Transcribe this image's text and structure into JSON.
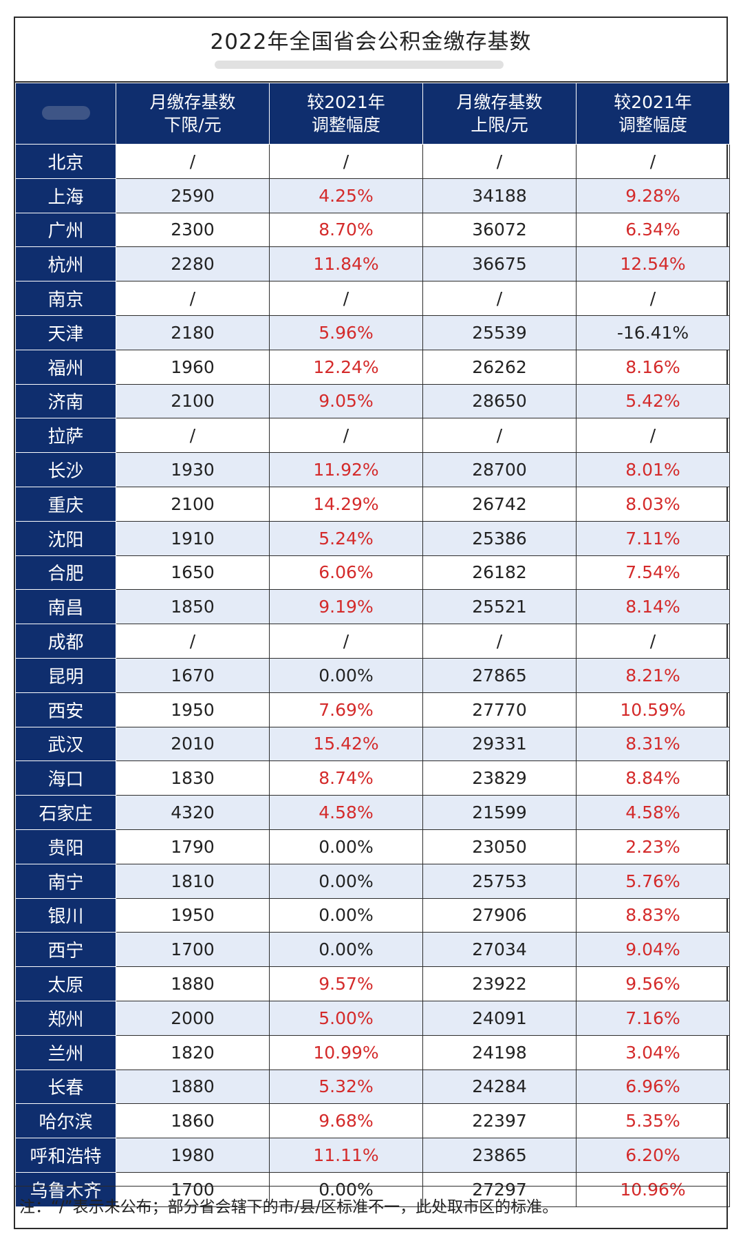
{
  "title": "2022年全国省会公积金缴存基数",
  "header": {
    "lower_limit": "月缴存基数\n下限/元",
    "lower_change": "较2021年\n调整幅度",
    "upper_limit": "月缴存基数\n上限/元",
    "upper_change": "较2021年\n调整幅度"
  },
  "colors": {
    "header_bg": "#0f2e6e",
    "row_alt_bg": "#e4ebf7",
    "increase_red": "#d42a2a"
  },
  "rows": [
    {
      "city": "北京",
      "lower": "/",
      "lower_change": "/",
      "upper": "/",
      "upper_change": "/"
    },
    {
      "city": "上海",
      "lower": "2590",
      "lower_change": "4.25%",
      "upper": "34188",
      "upper_change": "9.28%"
    },
    {
      "city": "广州",
      "lower": "2300",
      "lower_change": "8.70%",
      "upper": "36072",
      "upper_change": "6.34%"
    },
    {
      "city": "杭州",
      "lower": "2280",
      "lower_change": "11.84%",
      "upper": "36675",
      "upper_change": "12.54%"
    },
    {
      "city": "南京",
      "lower": "/",
      "lower_change": "/",
      "upper": "/",
      "upper_change": "/"
    },
    {
      "city": "天津",
      "lower": "2180",
      "lower_change": "5.96%",
      "upper": "25539",
      "upper_change": "-16.41%"
    },
    {
      "city": "福州",
      "lower": "1960",
      "lower_change": "12.24%",
      "upper": "26262",
      "upper_change": "8.16%"
    },
    {
      "city": "济南",
      "lower": "2100",
      "lower_change": "9.05%",
      "upper": "28650",
      "upper_change": "5.42%"
    },
    {
      "city": "拉萨",
      "lower": "/",
      "lower_change": "/",
      "upper": "/",
      "upper_change": "/"
    },
    {
      "city": "长沙",
      "lower": "1930",
      "lower_change": "11.92%",
      "upper": "28700",
      "upper_change": "8.01%"
    },
    {
      "city": "重庆",
      "lower": "2100",
      "lower_change": "14.29%",
      "upper": "26742",
      "upper_change": "8.03%"
    },
    {
      "city": "沈阳",
      "lower": "1910",
      "lower_change": "5.24%",
      "upper": "25386",
      "upper_change": "7.11%"
    },
    {
      "city": "合肥",
      "lower": "1650",
      "lower_change": "6.06%",
      "upper": "26182",
      "upper_change": "7.54%"
    },
    {
      "city": "南昌",
      "lower": "1850",
      "lower_change": "9.19%",
      "upper": "25521",
      "upper_change": "8.14%"
    },
    {
      "city": "成都",
      "lower": "/",
      "lower_change": "/",
      "upper": "/",
      "upper_change": "/"
    },
    {
      "city": "昆明",
      "lower": "1670",
      "lower_change": "0.00%",
      "upper": "27865",
      "upper_change": "8.21%"
    },
    {
      "city": "西安",
      "lower": "1950",
      "lower_change": "7.69%",
      "upper": "27770",
      "upper_change": "10.59%"
    },
    {
      "city": "武汉",
      "lower": "2010",
      "lower_change": "15.42%",
      "upper": "29331",
      "upper_change": "8.31%"
    },
    {
      "city": "海口",
      "lower": "1830",
      "lower_change": "8.74%",
      "upper": "23829",
      "upper_change": "8.84%"
    },
    {
      "city": "石家庄",
      "lower": "4320",
      "lower_change": "4.58%",
      "upper": "21599",
      "upper_change": "4.58%"
    },
    {
      "city": "贵阳",
      "lower": "1790",
      "lower_change": "0.00%",
      "upper": "23050",
      "upper_change": "2.23%"
    },
    {
      "city": "南宁",
      "lower": "1810",
      "lower_change": "0.00%",
      "upper": "25753",
      "upper_change": "5.76%"
    },
    {
      "city": "银川",
      "lower": "1950",
      "lower_change": "0.00%",
      "upper": "27906",
      "upper_change": "8.83%"
    },
    {
      "city": "西宁",
      "lower": "1700",
      "lower_change": "0.00%",
      "upper": "27034",
      "upper_change": "9.04%"
    },
    {
      "city": "太原",
      "lower": "1880",
      "lower_change": "9.57%",
      "upper": "23922",
      "upper_change": "9.56%"
    },
    {
      "city": "郑州",
      "lower": "2000",
      "lower_change": "5.00%",
      "upper": "24091",
      "upper_change": "7.16%"
    },
    {
      "city": "兰州",
      "lower": "1820",
      "lower_change": "10.99%",
      "upper": "24198",
      "upper_change": "3.04%"
    },
    {
      "city": "长春",
      "lower": "1880",
      "lower_change": "5.32%",
      "upper": "24284",
      "upper_change": "6.96%"
    },
    {
      "city": "哈尔滨",
      "lower": "1860",
      "lower_change": "9.68%",
      "upper": "22397",
      "upper_change": "5.35%"
    },
    {
      "city": "呼和浩特",
      "lower": "1980",
      "lower_change": "11.11%",
      "upper": "23865",
      "upper_change": "6.20%"
    },
    {
      "city": "乌鲁木齐",
      "lower": "1700",
      "lower_change": "0.00%",
      "upper": "27297",
      "upper_change": "10.96%"
    }
  ],
  "note": "注：“/”表示未公布；部分省会辖下的市/县/区标准不一，此处取市区的标准。"
}
